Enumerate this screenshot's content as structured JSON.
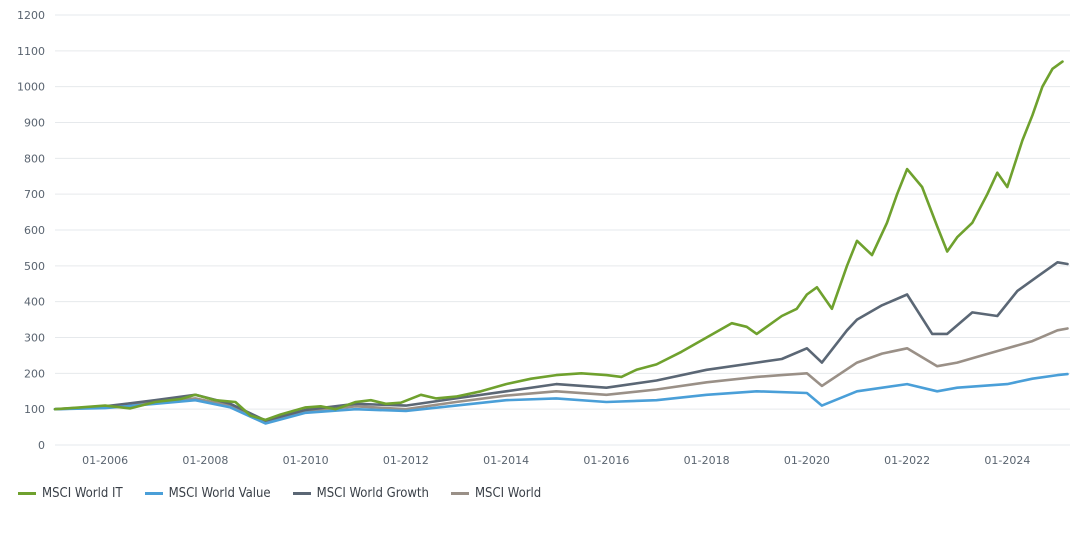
{
  "chart_data": {
    "type": "line",
    "title": "",
    "xlabel": "",
    "ylabel": "",
    "ylim": [
      0,
      1200
    ],
    "yticks": [
      0,
      100,
      200,
      300,
      400,
      500,
      600,
      700,
      800,
      900,
      1000,
      1100,
      1200
    ],
    "xticks": [
      "01-2006",
      "01-2008",
      "01-2010",
      "01-2012",
      "01-2014",
      "01-2016",
      "01-2018",
      "01-2020",
      "01-2022",
      "01-2024"
    ],
    "xtick_years": [
      2006,
      2008,
      2010,
      2012,
      2014,
      2016,
      2018,
      2020,
      2022,
      2024
    ],
    "xlim_years": [
      2005.0,
      2025.25
    ],
    "grid": "horizontal",
    "legend_position": "bottom-left",
    "series": [
      {
        "name": "MSCI World IT",
        "color": "#6fa12e",
        "x": [
          2005.0,
          2005.5,
          2006.0,
          2006.5,
          2007.0,
          2007.5,
          2007.8,
          2008.2,
          2008.6,
          2008.9,
          2009.2,
          2009.5,
          2010.0,
          2010.3,
          2010.6,
          2011.0,
          2011.3,
          2011.6,
          2011.9,
          2012.3,
          2012.6,
          2013.0,
          2013.5,
          2014.0,
          2014.5,
          2015.0,
          2015.5,
          2016.0,
          2016.3,
          2016.6,
          2017.0,
          2017.5,
          2018.0,
          2018.5,
          2018.8,
          2019.0,
          2019.5,
          2019.8,
          2020.0,
          2020.2,
          2020.5,
          2020.8,
          2021.0,
          2021.3,
          2021.6,
          2021.8,
          2022.0,
          2022.3,
          2022.6,
          2022.8,
          2023.0,
          2023.3,
          2023.6,
          2023.8,
          2024.0,
          2024.3,
          2024.5,
          2024.7,
          2024.9,
          2025.1
        ],
        "values": [
          100,
          105,
          110,
          102,
          120,
          128,
          140,
          125,
          120,
          82,
          70,
          85,
          105,
          108,
          100,
          120,
          125,
          115,
          118,
          140,
          130,
          135,
          150,
          170,
          185,
          195,
          200,
          195,
          190,
          210,
          225,
          260,
          300,
          340,
          330,
          310,
          360,
          380,
          420,
          440,
          380,
          500,
          570,
          530,
          620,
          700,
          770,
          720,
          610,
          540,
          580,
          620,
          700,
          760,
          720,
          850,
          920,
          1000,
          1050,
          1070
        ]
      },
      {
        "name": "MSCI World Value",
        "color": "#4a9fd8",
        "x": [
          2005.0,
          2006.0,
          2007.0,
          2007.8,
          2008.5,
          2009.2,
          2010.0,
          2011.0,
          2012.0,
          2013.0,
          2014.0,
          2015.0,
          2016.0,
          2017.0,
          2018.0,
          2019.0,
          2020.0,
          2020.3,
          2021.0,
          2022.0,
          2022.6,
          2023.0,
          2024.0,
          2024.5,
          2025.0,
          2025.2
        ],
        "values": [
          100,
          103,
          115,
          125,
          105,
          60,
          90,
          100,
          95,
          110,
          125,
          130,
          120,
          125,
          140,
          150,
          145,
          110,
          150,
          170,
          150,
          160,
          170,
          185,
          195,
          198
        ]
      },
      {
        "name": "MSCI World Growth",
        "color": "#5b6775",
        "x": [
          2005.0,
          2006.0,
          2007.0,
          2007.8,
          2008.5,
          2009.2,
          2010.0,
          2011.0,
          2012.0,
          2013.0,
          2014.0,
          2015.0,
          2016.0,
          2017.0,
          2018.0,
          2019.0,
          2019.5,
          2020.0,
          2020.3,
          2020.8,
          2021.0,
          2021.5,
          2022.0,
          2022.5,
          2022.8,
          2023.3,
          2023.8,
          2024.2,
          2024.6,
          2025.0,
          2025.2
        ],
        "values": [
          100,
          108,
          125,
          140,
          115,
          68,
          98,
          115,
          110,
          130,
          150,
          170,
          160,
          180,
          210,
          230,
          240,
          270,
          230,
          320,
          350,
          390,
          420,
          310,
          310,
          370,
          360,
          430,
          470,
          510,
          505
        ]
      },
      {
        "name": "MSCI World",
        "color": "#9a9087",
        "x": [
          2005.0,
          2006.0,
          2007.0,
          2007.8,
          2008.5,
          2009.2,
          2010.0,
          2011.0,
          2012.0,
          2013.0,
          2014.0,
          2015.0,
          2016.0,
          2017.0,
          2018.0,
          2019.0,
          2019.5,
          2020.0,
          2020.3,
          2021.0,
          2021.5,
          2022.0,
          2022.6,
          2023.0,
          2023.5,
          2024.0,
          2024.5,
          2025.0,
          2025.2
        ],
        "values": [
          100,
          105,
          120,
          130,
          110,
          65,
          94,
          108,
          100,
          120,
          138,
          150,
          140,
          155,
          175,
          190,
          195,
          200,
          165,
          230,
          255,
          270,
          220,
          230,
          250,
          270,
          290,
          320,
          325
        ]
      }
    ]
  }
}
